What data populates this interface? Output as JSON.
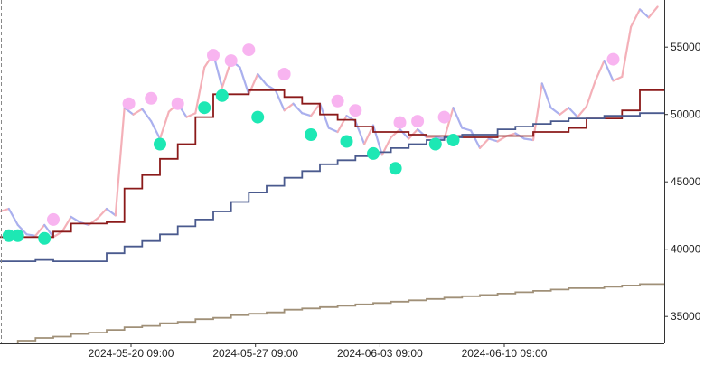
{
  "chart_data": {
    "type": "line",
    "title": "",
    "xlabel": "",
    "ylabel": "",
    "x_range": [
      "2024-05-13 00:00",
      "2024-06-19 09:00"
    ],
    "ylim": [
      33000,
      58500
    ],
    "x_ticks": [
      "2024-05-20 09:00",
      "2024-05-27 09:00",
      "2024-06-03 09:00",
      "2024-06-10 09:00"
    ],
    "y_ticks": [
      35000,
      40000,
      45000,
      50000,
      55000
    ],
    "y_axis_side": "right",
    "grid": false,
    "colors": {
      "price_up": "#f4b0b8",
      "price_down": "#aab0ee",
      "step_short": "#8b1a1a",
      "step_mid": "#4a5a8e",
      "step_long": "#a09078",
      "peak_marker": "#f8b4f0",
      "trough_marker": "#1de8b4",
      "axis": "#333333"
    },
    "series": [
      {
        "role": "price",
        "points": [
          [
            "2024-05-13 00:00",
            42800
          ],
          [
            "2024-05-13 12:00",
            43000
          ],
          [
            "2024-05-14 00:00",
            41800
          ],
          [
            "2024-05-14 12:00",
            41100
          ],
          [
            "2024-05-15 00:00",
            41000
          ],
          [
            "2024-05-15 12:00",
            41800
          ],
          [
            "2024-05-16 00:00",
            40900
          ],
          [
            "2024-05-16 12:00",
            41300
          ],
          [
            "2024-05-17 00:00",
            42400
          ],
          [
            "2024-05-17 12:00",
            42000
          ],
          [
            "2024-05-18 00:00",
            41800
          ],
          [
            "2024-05-18 12:00",
            42300
          ],
          [
            "2024-05-19 00:00",
            43000
          ],
          [
            "2024-05-19 12:00",
            42500
          ],
          [
            "2024-05-20 00:00",
            50500
          ],
          [
            "2024-05-20 12:00",
            50000
          ],
          [
            "2024-05-21 00:00",
            50400
          ],
          [
            "2024-05-21 12:00",
            49500
          ],
          [
            "2024-05-22 00:00",
            48200
          ],
          [
            "2024-05-22 12:00",
            50200
          ],
          [
            "2024-05-23 00:00",
            50800
          ],
          [
            "2024-05-23 12:00",
            49800
          ],
          [
            "2024-05-24 00:00",
            50100
          ],
          [
            "2024-05-24 12:00",
            53500
          ],
          [
            "2024-05-25 00:00",
            54500
          ],
          [
            "2024-05-25 12:00",
            52000
          ],
          [
            "2024-05-26 00:00",
            54000
          ],
          [
            "2024-05-26 12:00",
            53500
          ],
          [
            "2024-05-27 00:00",
            51500
          ],
          [
            "2024-05-27 12:00",
            53000
          ],
          [
            "2024-05-28 00:00",
            52200
          ],
          [
            "2024-05-28 12:00",
            51800
          ],
          [
            "2024-05-29 00:00",
            50300
          ],
          [
            "2024-05-29 12:00",
            50800
          ],
          [
            "2024-05-30 00:00",
            50100
          ],
          [
            "2024-05-30 12:00",
            49900
          ],
          [
            "2024-05-31 00:00",
            50800
          ],
          [
            "2024-05-31 12:00",
            49000
          ],
          [
            "2024-06-01 00:00",
            48700
          ],
          [
            "2024-06-01 12:00",
            49900
          ],
          [
            "2024-06-02 00:00",
            49500
          ],
          [
            "2024-06-02 12:00",
            47800
          ],
          [
            "2024-06-03 00:00",
            49200
          ],
          [
            "2024-06-03 12:00",
            47000
          ],
          [
            "2024-06-04 00:00",
            48300
          ],
          [
            "2024-06-04 12:00",
            48900
          ],
          [
            "2024-06-05 00:00",
            48200
          ],
          [
            "2024-06-05 12:00",
            48900
          ],
          [
            "2024-06-06 00:00",
            48300
          ],
          [
            "2024-06-06 12:00",
            48300
          ],
          [
            "2024-06-07 00:00",
            48200
          ],
          [
            "2024-06-07 12:00",
            50500
          ],
          [
            "2024-06-08 00:00",
            49000
          ],
          [
            "2024-06-08 12:00",
            48800
          ],
          [
            "2024-06-09 00:00",
            47500
          ],
          [
            "2024-06-09 12:00",
            48200
          ],
          [
            "2024-06-10 00:00",
            48000
          ],
          [
            "2024-06-10 12:00",
            48400
          ],
          [
            "2024-06-11 00:00",
            48600
          ],
          [
            "2024-06-11 12:00",
            48200
          ],
          [
            "2024-06-12 00:00",
            48100
          ],
          [
            "2024-06-12 12:00",
            52300
          ],
          [
            "2024-06-13 00:00",
            50500
          ],
          [
            "2024-06-13 12:00",
            50000
          ],
          [
            "2024-06-14 00:00",
            50500
          ],
          [
            "2024-06-14 12:00",
            49800
          ],
          [
            "2024-06-15 00:00",
            50600
          ],
          [
            "2024-06-15 12:00",
            52500
          ],
          [
            "2024-06-16 00:00",
            54000
          ],
          [
            "2024-06-16 12:00",
            52500
          ],
          [
            "2024-06-17 00:00",
            52800
          ],
          [
            "2024-06-17 12:00",
            56500
          ],
          [
            "2024-06-18 00:00",
            57800
          ],
          [
            "2024-06-18 12:00",
            57200
          ],
          [
            "2024-06-19 00:00",
            58000
          ]
        ]
      },
      {
        "role": "step-short",
        "points": [
          [
            "2024-05-13 00:00",
            40900
          ],
          [
            "2024-05-16 00:00",
            41300
          ],
          [
            "2024-05-17 00:00",
            41900
          ],
          [
            "2024-05-19 00:00",
            42000
          ],
          [
            "2024-05-20 00:00",
            44500
          ],
          [
            "2024-05-21 00:00",
            45500
          ],
          [
            "2024-05-22 00:00",
            46700
          ],
          [
            "2024-05-23 00:00",
            47800
          ],
          [
            "2024-05-24 00:00",
            49800
          ],
          [
            "2024-05-25 00:00",
            51500
          ],
          [
            "2024-05-27 00:00",
            51800
          ],
          [
            "2024-05-29 00:00",
            51300
          ],
          [
            "2024-05-30 00:00",
            50800
          ],
          [
            "2024-05-31 00:00",
            50000
          ],
          [
            "2024-06-01 00:00",
            49600
          ],
          [
            "2024-06-02 00:00",
            49100
          ],
          [
            "2024-06-03 00:00",
            48700
          ],
          [
            "2024-06-05 00:00",
            48500
          ],
          [
            "2024-06-06 00:00",
            48400
          ],
          [
            "2024-06-08 00:00",
            48300
          ],
          [
            "2024-06-10 00:00",
            48400
          ],
          [
            "2024-06-12 00:00",
            48700
          ],
          [
            "2024-06-14 00:00",
            49000
          ],
          [
            "2024-06-15 00:00",
            49700
          ],
          [
            "2024-06-17 00:00",
            50300
          ],
          [
            "2024-06-18 00:00",
            51800
          ],
          [
            "2024-06-19 00:00",
            51800
          ]
        ]
      },
      {
        "role": "step-mid",
        "points": [
          [
            "2024-05-13 00:00",
            39100
          ],
          [
            "2024-05-15 00:00",
            39200
          ],
          [
            "2024-05-16 00:00",
            39100
          ],
          [
            "2024-05-19 00:00",
            39700
          ],
          [
            "2024-05-20 00:00",
            40200
          ],
          [
            "2024-05-21 00:00",
            40600
          ],
          [
            "2024-05-22 00:00",
            41100
          ],
          [
            "2024-05-23 00:00",
            41700
          ],
          [
            "2024-05-24 00:00",
            42200
          ],
          [
            "2024-05-25 00:00",
            42800
          ],
          [
            "2024-05-26 00:00",
            43500
          ],
          [
            "2024-05-27 00:00",
            44200
          ],
          [
            "2024-05-28 00:00",
            44700
          ],
          [
            "2024-05-29 00:00",
            45300
          ],
          [
            "2024-05-30 00:00",
            45800
          ],
          [
            "2024-05-31 00:00",
            46300
          ],
          [
            "2024-06-01 00:00",
            46600
          ],
          [
            "2024-06-02 00:00",
            46900
          ],
          [
            "2024-06-03 00:00",
            47200
          ],
          [
            "2024-06-04 00:00",
            47500
          ],
          [
            "2024-06-05 00:00",
            47800
          ],
          [
            "2024-06-06 00:00",
            48100
          ],
          [
            "2024-06-07 00:00",
            48300
          ],
          [
            "2024-06-08 00:00",
            48500
          ],
          [
            "2024-06-10 00:00",
            48900
          ],
          [
            "2024-06-11 00:00",
            49100
          ],
          [
            "2024-06-12 00:00",
            49300
          ],
          [
            "2024-06-13 00:00",
            49500
          ],
          [
            "2024-06-14 00:00",
            49700
          ],
          [
            "2024-06-16 00:00",
            49900
          ],
          [
            "2024-06-18 00:00",
            50100
          ],
          [
            "2024-06-19 00:00",
            50100
          ]
        ]
      },
      {
        "role": "step-long",
        "points": [
          [
            "2024-05-13 00:00",
            33000
          ],
          [
            "2024-05-14 00:00",
            33200
          ],
          [
            "2024-05-15 00:00",
            33400
          ],
          [
            "2024-05-16 00:00",
            33500
          ],
          [
            "2024-05-17 00:00",
            33700
          ],
          [
            "2024-05-18 00:00",
            33800
          ],
          [
            "2024-05-19 00:00",
            34000
          ],
          [
            "2024-05-20 00:00",
            34200
          ],
          [
            "2024-05-21 00:00",
            34300
          ],
          [
            "2024-05-22 00:00",
            34500
          ],
          [
            "2024-05-23 00:00",
            34600
          ],
          [
            "2024-05-24 00:00",
            34800
          ],
          [
            "2024-05-25 00:00",
            34900
          ],
          [
            "2024-05-26 00:00",
            35100
          ],
          [
            "2024-05-27 00:00",
            35200
          ],
          [
            "2024-05-28 00:00",
            35300
          ],
          [
            "2024-05-29 00:00",
            35500
          ],
          [
            "2024-05-30 00:00",
            35600
          ],
          [
            "2024-05-31 00:00",
            35700
          ],
          [
            "2024-06-01 00:00",
            35800
          ],
          [
            "2024-06-02 00:00",
            35900
          ],
          [
            "2024-06-03 00:00",
            36000
          ],
          [
            "2024-06-04 00:00",
            36100
          ],
          [
            "2024-06-05 00:00",
            36200
          ],
          [
            "2024-06-06 00:00",
            36300
          ],
          [
            "2024-06-07 00:00",
            36400
          ],
          [
            "2024-06-08 00:00",
            36500
          ],
          [
            "2024-06-09 00:00",
            36600
          ],
          [
            "2024-06-10 00:00",
            36700
          ],
          [
            "2024-06-11 00:00",
            36800
          ],
          [
            "2024-06-12 00:00",
            36900
          ],
          [
            "2024-06-13 00:00",
            37000
          ],
          [
            "2024-06-14 00:00",
            37100
          ],
          [
            "2024-06-15 00:00",
            37100
          ],
          [
            "2024-06-16 00:00",
            37200
          ],
          [
            "2024-06-17 00:00",
            37300
          ],
          [
            "2024-06-18 00:00",
            37400
          ],
          [
            "2024-06-19 00:00",
            37400
          ]
        ]
      }
    ],
    "peak_markers": [
      [
        "2024-05-16 00:00",
        42200
      ],
      [
        "2024-05-20 06:00",
        50800
      ],
      [
        "2024-05-21 12:00",
        51200
      ],
      [
        "2024-05-23 00:00",
        50800
      ],
      [
        "2024-05-25 00:00",
        54400
      ],
      [
        "2024-05-26 00:00",
        54000
      ],
      [
        "2024-05-27 00:00",
        54800
      ],
      [
        "2024-05-29 00:00",
        53000
      ],
      [
        "2024-06-01 00:00",
        51000
      ],
      [
        "2024-06-02 00:00",
        50300
      ],
      [
        "2024-06-04 12:00",
        49400
      ],
      [
        "2024-06-05 12:00",
        49500
      ],
      [
        "2024-06-07 00:00",
        49800
      ],
      [
        "2024-06-16 12:00",
        54100
      ]
    ],
    "trough_markers": [
      [
        "2024-05-13 12:00",
        41000
      ],
      [
        "2024-05-14 00:00",
        41000
      ],
      [
        "2024-05-15 12:00",
        40800
      ],
      [
        "2024-05-22 00:00",
        47800
      ],
      [
        "2024-05-24 12:00",
        50500
      ],
      [
        "2024-05-25 12:00",
        51400
      ],
      [
        "2024-05-27 12:00",
        49800
      ],
      [
        "2024-05-30 12:00",
        48500
      ],
      [
        "2024-06-01 12:00",
        48000
      ],
      [
        "2024-06-03 00:00",
        47100
      ],
      [
        "2024-06-04 06:00",
        46000
      ],
      [
        "2024-06-06 12:00",
        47800
      ],
      [
        "2024-06-07 12:00",
        48100
      ]
    ]
  }
}
